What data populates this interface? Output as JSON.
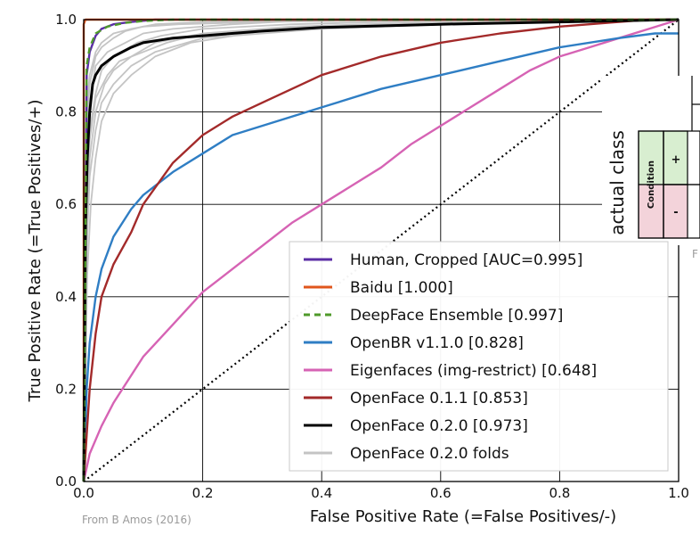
{
  "chart_data": {
    "type": "line",
    "xlabel": "False Positive Rate (=False Positives/-)",
    "ylabel": "True Positive Rate (=True Positives/+)",
    "xlim": [
      0.0,
      1.0
    ],
    "ylim": [
      0.0,
      1.0
    ],
    "xticks": [
      "0.0",
      "0.2",
      "0.4",
      "0.6",
      "0.8",
      "1.0"
    ],
    "yticks": [
      "0.0",
      "0.2",
      "0.4",
      "0.6",
      "0.8",
      "1.0"
    ],
    "grid": true,
    "legend_position": "bottom-right",
    "series": [
      {
        "name": "Human, Cropped [AUC=0.995]",
        "color": "#5b2ea6",
        "style": "solid",
        "x": [
          0,
          0.005,
          0.01,
          0.02,
          0.03,
          0.05,
          0.08,
          0.12,
          0.2,
          0.5,
          1.0
        ],
        "y": [
          0,
          0.88,
          0.93,
          0.965,
          0.98,
          0.99,
          0.995,
          1.0,
          1.0,
          1.0,
          1.0
        ]
      },
      {
        "name": "Baidu [1.000]",
        "color": "#e0561c",
        "style": "solid",
        "x": [
          0,
          0.0,
          0.003,
          0.01,
          1.0
        ],
        "y": [
          0,
          0.99,
          1.0,
          1.0,
          1.0
        ]
      },
      {
        "name": "DeepFace Ensemble [0.997]",
        "color": "#4f9a2a",
        "style": "dashed",
        "x": [
          0,
          0.005,
          0.01,
          0.02,
          0.04,
          0.07,
          0.1,
          0.15,
          0.3,
          1.0
        ],
        "y": [
          0,
          0.9,
          0.94,
          0.97,
          0.985,
          0.993,
          0.997,
          1.0,
          1.0,
          1.0
        ]
      },
      {
        "name": "OpenBR v1.1.0 [0.828]",
        "color": "#2f7ec4",
        "style": "solid",
        "x": [
          0,
          0.005,
          0.01,
          0.02,
          0.03,
          0.05,
          0.08,
          0.1,
          0.15,
          0.2,
          0.25,
          0.3,
          0.4,
          0.5,
          0.6,
          0.7,
          0.8,
          0.9,
          0.96,
          1.0
        ],
        "y": [
          0,
          0.2,
          0.3,
          0.4,
          0.46,
          0.53,
          0.59,
          0.62,
          0.67,
          0.71,
          0.75,
          0.77,
          0.81,
          0.85,
          0.88,
          0.91,
          0.94,
          0.96,
          0.97,
          0.97
        ]
      },
      {
        "name": "Eigenfaces (img-restrict) [0.648]",
        "color": "#d663b4",
        "style": "solid",
        "x": [
          0,
          0.01,
          0.03,
          0.05,
          0.1,
          0.15,
          0.2,
          0.25,
          0.3,
          0.35,
          0.4,
          0.45,
          0.5,
          0.55,
          0.6,
          0.65,
          0.7,
          0.75,
          0.8,
          0.85,
          0.9,
          0.95,
          1.0
        ],
        "y": [
          0,
          0.06,
          0.12,
          0.17,
          0.27,
          0.34,
          0.41,
          0.46,
          0.51,
          0.56,
          0.6,
          0.64,
          0.68,
          0.73,
          0.77,
          0.81,
          0.85,
          0.89,
          0.92,
          0.94,
          0.96,
          0.98,
          1.0
        ]
      },
      {
        "name": "OpenFace 0.1.1 [0.853]",
        "color": "#a32a2a",
        "style": "solid",
        "x": [
          0,
          0.005,
          0.01,
          0.02,
          0.03,
          0.05,
          0.08,
          0.1,
          0.15,
          0.2,
          0.25,
          0.3,
          0.35,
          0.4,
          0.5,
          0.6,
          0.7,
          0.8,
          0.9,
          0.95,
          1.0
        ],
        "y": [
          0,
          0.1,
          0.2,
          0.32,
          0.4,
          0.47,
          0.54,
          0.6,
          0.69,
          0.75,
          0.79,
          0.82,
          0.85,
          0.88,
          0.92,
          0.95,
          0.97,
          0.985,
          0.995,
          1.0,
          1.0
        ]
      },
      {
        "name": "OpenFace 0.2.0 [0.973]",
        "color": "#000000",
        "style": "solid",
        "x": [
          0,
          0.003,
          0.006,
          0.01,
          0.015,
          0.02,
          0.03,
          0.05,
          0.08,
          0.1,
          0.15,
          0.2,
          0.3,
          0.4,
          0.6,
          0.8,
          1.0
        ],
        "y": [
          0,
          0.55,
          0.7,
          0.8,
          0.86,
          0.88,
          0.9,
          0.92,
          0.94,
          0.95,
          0.96,
          0.965,
          0.975,
          0.983,
          0.99,
          0.995,
          1.0
        ]
      },
      {
        "name": "OpenFace 0.2.0 folds",
        "color": "#c4c4c4",
        "style": "solid",
        "x": [
          0,
          0.005,
          0.01,
          0.02,
          0.03,
          0.05,
          0.08,
          0.12,
          0.2,
          0.4,
          0.7,
          1.0
        ],
        "y": [
          0,
          0.65,
          0.78,
          0.85,
          0.88,
          0.91,
          0.94,
          0.96,
          0.975,
          0.99,
          1.0,
          1.0
        ]
      }
    ],
    "folds": [
      {
        "x": [
          0,
          0.005,
          0.01,
          0.02,
          0.04,
          0.07,
          0.1,
          0.15,
          0.25,
          0.4,
          0.7,
          1.0
        ],
        "y": [
          0,
          0.7,
          0.82,
          0.9,
          0.93,
          0.95,
          0.97,
          0.98,
          0.99,
          1.0,
          1.0,
          1.0
        ]
      },
      {
        "x": [
          0,
          0.005,
          0.01,
          0.02,
          0.03,
          0.05,
          0.08,
          0.12,
          0.2,
          0.4,
          0.7,
          1.0
        ],
        "y": [
          0,
          0.5,
          0.66,
          0.76,
          0.82,
          0.86,
          0.9,
          0.93,
          0.96,
          0.98,
          0.995,
          1.0
        ]
      },
      {
        "x": [
          0,
          0.005,
          0.01,
          0.02,
          0.04,
          0.06,
          0.1,
          0.14,
          0.2,
          0.35,
          0.6,
          1.0
        ],
        "y": [
          0,
          0.6,
          0.74,
          0.83,
          0.88,
          0.91,
          0.93,
          0.95,
          0.97,
          0.985,
          0.995,
          1.0
        ]
      },
      {
        "x": [
          0,
          0.004,
          0.01,
          0.02,
          0.03,
          0.05,
          0.07,
          0.1,
          0.16,
          0.3,
          0.6,
          1.0
        ],
        "y": [
          0,
          0.75,
          0.86,
          0.92,
          0.94,
          0.96,
          0.975,
          0.985,
          0.99,
          0.995,
          1.0,
          1.0
        ]
      },
      {
        "x": [
          0,
          0.006,
          0.012,
          0.02,
          0.03,
          0.05,
          0.08,
          0.12,
          0.18,
          0.3,
          0.6,
          1.0
        ],
        "y": [
          0,
          0.45,
          0.6,
          0.7,
          0.78,
          0.84,
          0.88,
          0.92,
          0.95,
          0.975,
          0.99,
          1.0
        ]
      },
      {
        "x": [
          0,
          0.005,
          0.01,
          0.02,
          0.03,
          0.05,
          0.09,
          0.13,
          0.2,
          0.35,
          0.65,
          1.0
        ],
        "y": [
          0,
          0.62,
          0.76,
          0.84,
          0.89,
          0.92,
          0.95,
          0.965,
          0.98,
          0.99,
          1.0,
          1.0
        ]
      },
      {
        "x": [
          0,
          0.005,
          0.01,
          0.02,
          0.035,
          0.05,
          0.08,
          0.12,
          0.2,
          0.4,
          0.7,
          1.0
        ],
        "y": [
          0,
          0.55,
          0.7,
          0.8,
          0.86,
          0.89,
          0.92,
          0.95,
          0.97,
          0.985,
          0.995,
          1.0
        ]
      },
      {
        "x": [
          0,
          0.004,
          0.01,
          0.02,
          0.03,
          0.05,
          0.08,
          0.12,
          0.2,
          0.4,
          0.7,
          1.0
        ],
        "y": [
          0,
          0.8,
          0.88,
          0.93,
          0.95,
          0.97,
          0.98,
          0.99,
          0.995,
          1.0,
          1.0,
          1.0
        ]
      }
    ],
    "reference_line": {
      "x": [
        0,
        1
      ],
      "y": [
        0,
        1
      ],
      "color": "#000000",
      "style": "dotted"
    }
  },
  "annotations": {
    "credit": "From B Amos (2016)"
  },
  "inset": {
    "actual_class_label": "actual class",
    "condition_label": "Condition",
    "positive_label": "+",
    "negative_label": "-",
    "partial_letter": "F",
    "positive_color": "#d8eed0",
    "negative_color": "#f3d3da"
  }
}
